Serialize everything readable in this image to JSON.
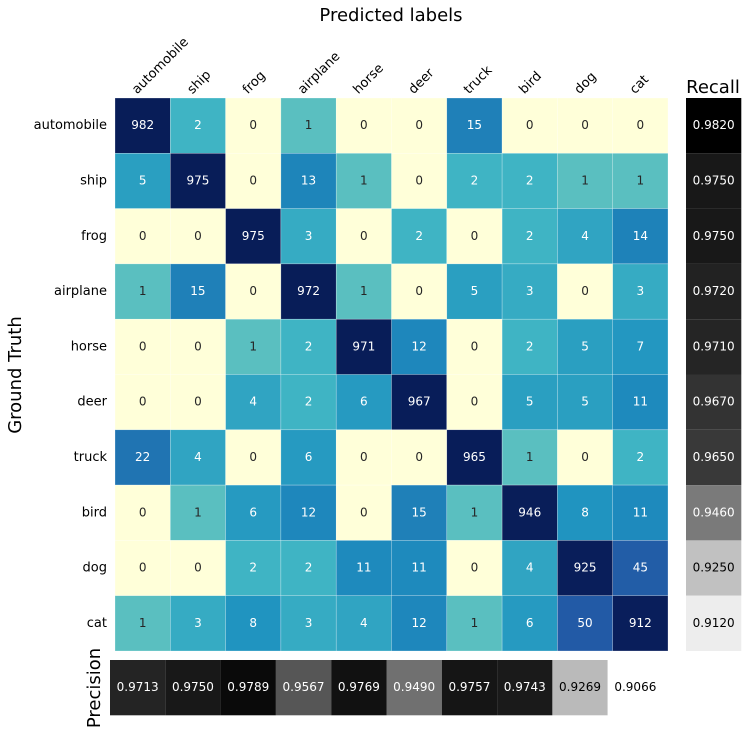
{
  "chart_data": {
    "type": "heatmap",
    "title": "Predicted labels",
    "ylabel": "Ground Truth",
    "x_categories": [
      "automobile",
      "ship",
      "frog",
      "airplane",
      "horse",
      "deer",
      "truck",
      "bird",
      "dog",
      "cat"
    ],
    "y_categories": [
      "automobile",
      "ship",
      "frog",
      "airplane",
      "horse",
      "deer",
      "truck",
      "bird",
      "dog",
      "cat"
    ],
    "values": [
      [
        982,
        2,
        0,
        1,
        0,
        0,
        15,
        0,
        0,
        0
      ],
      [
        5,
        975,
        0,
        13,
        1,
        0,
        2,
        2,
        1,
        1
      ],
      [
        0,
        0,
        975,
        3,
        0,
        2,
        0,
        2,
        4,
        14
      ],
      [
        1,
        15,
        0,
        972,
        1,
        0,
        5,
        3,
        0,
        3
      ],
      [
        0,
        0,
        1,
        2,
        971,
        12,
        0,
        2,
        5,
        7
      ],
      [
        0,
        0,
        4,
        2,
        6,
        967,
        0,
        5,
        5,
        11
      ],
      [
        22,
        4,
        0,
        6,
        0,
        0,
        965,
        1,
        0,
        2
      ],
      [
        0,
        1,
        6,
        12,
        0,
        15,
        1,
        946,
        8,
        11
      ],
      [
        0,
        0,
        2,
        2,
        11,
        11,
        0,
        4,
        925,
        45
      ],
      [
        1,
        3,
        8,
        3,
        4,
        12,
        1,
        6,
        50,
        912
      ]
    ],
    "colors": [
      "#ffffd9",
      "#edf8b1",
      "#c7e9b4",
      "#7fcdbb",
      "#41b6c4",
      "#1d91c0",
      "#225ea8",
      "#253494",
      "#081d58"
    ],
    "color_scale": "log",
    "recall": {
      "label": "Recall",
      "values": [
        0.982,
        0.975,
        0.975,
        0.972,
        0.971,
        0.967,
        0.965,
        0.946,
        0.925,
        0.912
      ],
      "value_labels": [
        "0.9820",
        "0.9750",
        "0.9750",
        "0.9720",
        "0.9710",
        "0.9670",
        "0.9650",
        "0.9460",
        "0.9250",
        "0.9120"
      ]
    },
    "precision": {
      "label": "Precision",
      "values": [
        0.9713,
        0.975,
        0.9789,
        0.9567,
        0.9769,
        0.949,
        0.9757,
        0.9743,
        0.9269,
        0.9066
      ],
      "value_labels": [
        "0.9713",
        "0.9750",
        "0.9789",
        "0.9567",
        "0.9769",
        "0.9490",
        "0.9757",
        "0.9743",
        "0.9269",
        "0.9066"
      ]
    }
  }
}
